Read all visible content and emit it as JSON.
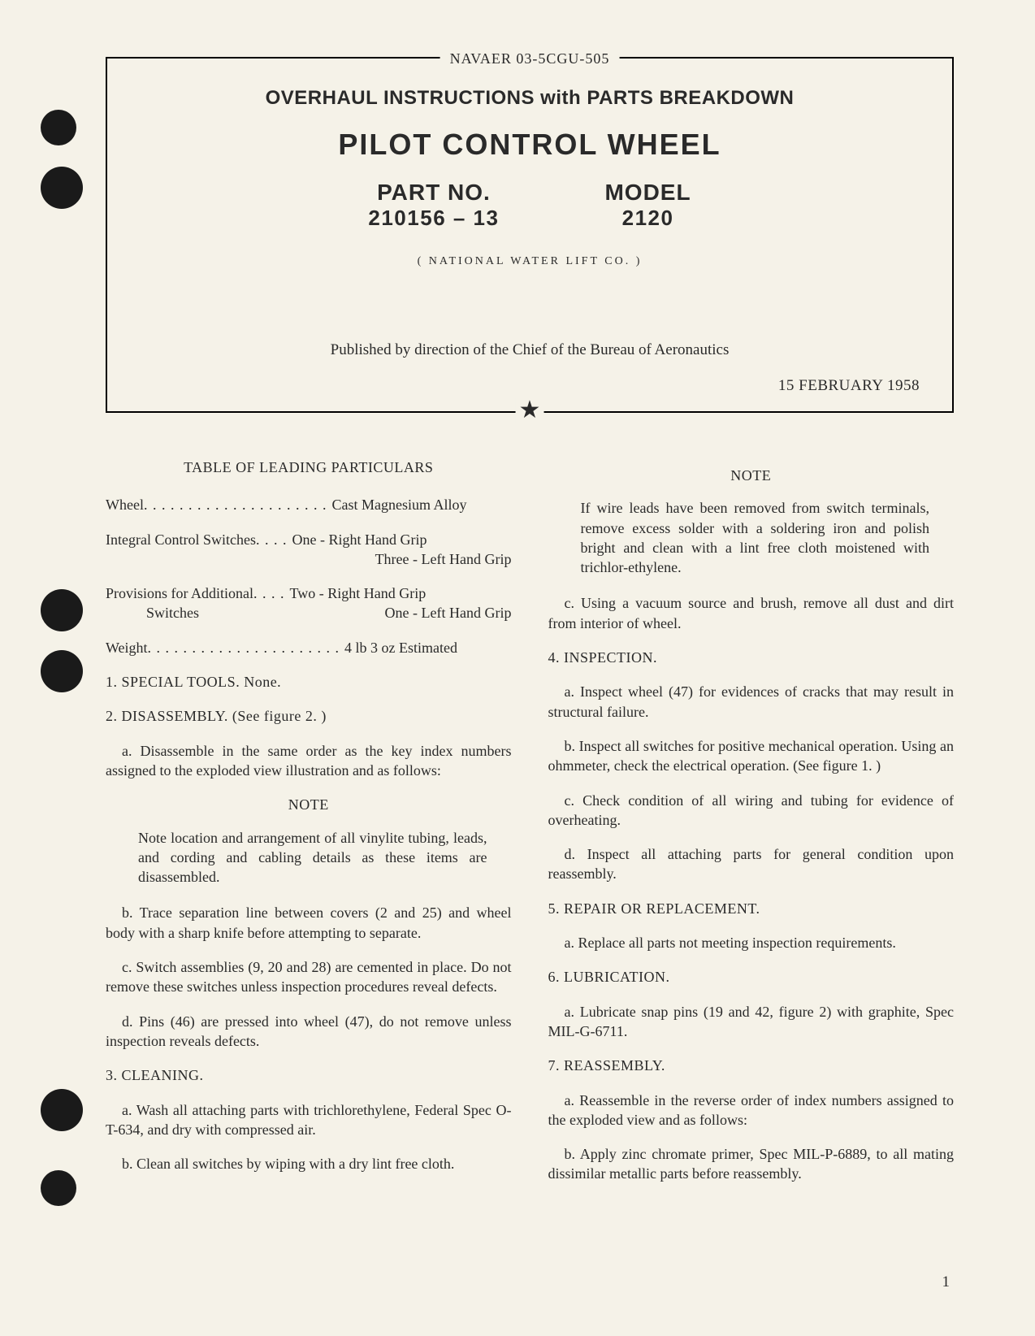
{
  "document_id": "NAVAER 03-5CGU-505",
  "heading": "OVERHAUL INSTRUCTIONS with PARTS BREAKDOWN",
  "product_title": "PILOT CONTROL WHEEL",
  "part_label": "PART NO.",
  "part_value": "210156 – 13",
  "model_label": "MODEL",
  "model_value": "2120",
  "company": "( NATIONAL WATER LIFT CO. )",
  "published": "Published by direction of the Chief of the Bureau of Aeronautics",
  "date": "15 FEBRUARY 1958",
  "table_title": "TABLE OF LEADING PARTICULARS",
  "specs": {
    "wheel_label": "Wheel",
    "wheel_dots": " . . . . . . . . . . . . . . . . . . . . . ",
    "wheel_value": "Cast Magnesium Alloy",
    "ics_label": "Integral Control Switches",
    "ics_dots": " . . . . ",
    "ics_value1": "One - Right Hand Grip",
    "ics_value2": "Three - Left Hand Grip",
    "prov_label": "Provisions for Additional",
    "prov_dots": " . . . . ",
    "prov_value1": "Two - Right Hand Grip",
    "prov_sublabel": "Switches",
    "prov_value2": "One - Left Hand Grip",
    "weight_label": "Weight",
    "weight_dots": " . . . . . . . . . . . . . . . . . . . . . . ",
    "weight_value": "4 lb 3 oz Estimated"
  },
  "s1": "1.  SPECIAL TOOLS.  None.",
  "s2": "2.  DISASSEMBLY.  (See figure 2. )",
  "s2a": "a.  Disassemble in the same order as the key index numbers assigned to the exploded view illustration and as follows:",
  "note1_title": "NOTE",
  "note1": "Note location and arrangement of all vinylite tubing, leads, and cording and cabling details as these items are disassembled.",
  "s2b": "b.  Trace separation line between covers (2 and 25) and wheel body with a sharp knife before attempting to separate.",
  "s2c": "c.  Switch assemblies (9, 20 and 28) are cemented in place.  Do not remove these switches unless inspection procedures reveal defects.",
  "s2d": "d.  Pins (46) are pressed into wheel (47), do not remove unless inspection reveals defects.",
  "s3": "3.  CLEANING.",
  "s3a": "a.  Wash all attaching parts with trichlorethylene, Federal Spec O-T-634, and dry with compressed air.",
  "s3b": "b.  Clean all switches by wiping with a dry lint free cloth.",
  "note2_title": "NOTE",
  "note2": "If wire leads have been removed from switch terminals, remove excess solder with a soldering iron and polish bright and clean with a lint free cloth moistened with trichlor-ethylene.",
  "s3c": "c.  Using a vacuum source and brush, remove all dust and dirt from interior of wheel.",
  "s4": "4.  INSPECTION.",
  "s4a": "a.  Inspect wheel (47) for evidences of cracks that may result in structural failure.",
  "s4b": "b.  Inspect all switches for positive mechanical operation.  Using an ohmmeter, check the electrical operation.  (See figure 1. )",
  "s4c": "c.  Check condition of all wiring and tubing for evidence of overheating.",
  "s4d": "d.  Inspect all attaching parts for general condition upon reassembly.",
  "s5": "5.  REPAIR OR REPLACEMENT.",
  "s5a": "a.  Replace all parts not meeting inspection requirements.",
  "s6": "6.  LUBRICATION.",
  "s6a": "a.  Lubricate snap pins (19 and 42, figure 2) with graphite, Spec MIL-G-6711.",
  "s7": "7.  REASSEMBLY.",
  "s7a": "a.  Reassemble in the reverse order of index numbers assigned to the exploded view and as follows:",
  "s7b": "b.  Apply zinc chromate primer, Spec MIL-P-6889, to all mating dissimilar metallic parts before reassembly.",
  "page_number": "1"
}
